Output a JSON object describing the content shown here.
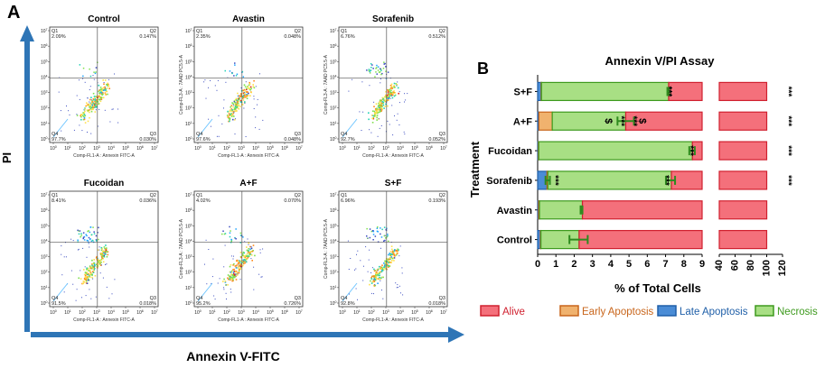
{
  "figure": {
    "panel_a_letter": "A",
    "panel_b_letter": "B",
    "x_arrow_label": "Annexin V-FITC",
    "y_arrow_label": "PI",
    "colors": {
      "arrow": "#2E75B6",
      "alive": "#F4707B",
      "alive_edge": "#D0202F",
      "early": "#F0B26E",
      "early_edge": "#C8651B",
      "late": "#4A8CD6",
      "late_edge": "#1F5FA8",
      "necrosis": "#A8DF84",
      "necrosis_edge": "#3E9A1E",
      "errbar": "#2E8B1E"
    }
  },
  "flow_panels": [
    {
      "title": "Control",
      "q1": "2.09%",
      "q2": "0.147%",
      "q3": "0.030%",
      "q4": "97.7%",
      "ylabel": ""
    },
    {
      "title": "Avastin",
      "q1": "2.35%",
      "q2": "0.048%",
      "q3": "0.048%",
      "q4": "97.6%",
      "ylabel": "Comp-FL3-A : 7AAD PC5.5-A"
    },
    {
      "title": "Sorafenib",
      "q1": "6.76%",
      "q2": "0.512%",
      "q3": "0.052%",
      "q4": "92.7%",
      "ylabel": "Comp-FL3-A : 7AAD PC5.5-A"
    },
    {
      "title": "Fucoidan",
      "q1": "8.41%",
      "q2": "0.036%",
      "q3": "0.018%",
      "q4": "91.5%",
      "ylabel": ""
    },
    {
      "title": "A+F",
      "q1": "4.02%",
      "q2": "0.070%",
      "q3": "0.726%",
      "q4": "95.2%",
      "ylabel": "Comp-FL3-A : 7AAD PC5.5-A"
    },
    {
      "title": "S+F",
      "q1": "6.96%",
      "q2": "0.193%",
      "q3": "0.018%",
      "q4": "92.8%",
      "ylabel": "Comp-FL3-A : 7AAD PC5.5-A"
    }
  ],
  "flow_axis": {
    "xlabel": "Comp-FL1-A : Annexin FITC-A",
    "x_ticks": [
      "10^0",
      "10^1",
      "10^2",
      "10^3",
      "10^4",
      "10^5",
      "10^6",
      "10^7"
    ],
    "y_ticks": [
      "10^0",
      "10^1",
      "10^2",
      "10^3",
      "10^4",
      "10^5",
      "10^6",
      "10^7"
    ]
  },
  "chart_data": {
    "type": "bar",
    "orientation": "horizontal",
    "stacked": true,
    "title": "Annexin V/PI Assay",
    "xlabel": "% of Total Cells",
    "ylabel": "Treatment",
    "categories": [
      "S+F",
      "A+F",
      "Fucoidan",
      "Sorafenib",
      "Avastin",
      "Control"
    ],
    "series": [
      {
        "name": "Late Apoptosis",
        "values": [
          0.19,
          0.07,
          0.04,
          0.51,
          0.05,
          0.15
        ]
      },
      {
        "name": "Early Apoptosis",
        "values": [
          0.02,
          0.73,
          0.02,
          0.05,
          0.05,
          0.03
        ]
      },
      {
        "name": "Necrosis",
        "values": [
          6.96,
          4.02,
          8.41,
          6.76,
          2.35,
          2.09
        ]
      },
      {
        "name": "Alive",
        "values": [
          92.8,
          95.2,
          91.5,
          92.7,
          97.6,
          97.7
        ]
      }
    ],
    "axis_break": true,
    "x_segment_1": {
      "range": [
        0,
        9
      ],
      "ticks": [
        "0",
        "1",
        "2",
        "3",
        "4",
        "5",
        "6",
        "7",
        "8",
        "9"
      ]
    },
    "x_segment_2": {
      "range": [
        40,
        120
      ],
      "ticks": [
        "40",
        "60",
        "80",
        "100",
        "120"
      ]
    },
    "legend": [
      "Alive",
      "Early Apoptosis",
      "Late Apoptosis",
      "Necrosis"
    ],
    "annotations": {
      "significance": "***",
      "dollar": "$",
      "labels": [
        {
          "category": "S+F",
          "at": 7.15,
          "text": "***",
          "rot": true
        },
        {
          "category": "S+F",
          "at": "right",
          "text": "***"
        },
        {
          "category": "A+F",
          "at": 3.85,
          "text": "$"
        },
        {
          "category": "A+F",
          "at": 4.55,
          "text": "***"
        },
        {
          "category": "A+F",
          "at": 5.25,
          "text": "***"
        },
        {
          "category": "A+F",
          "at": 5.7,
          "text": "$"
        },
        {
          "category": "A+F",
          "at": "right",
          "text": "***"
        },
        {
          "category": "Fucoidan",
          "at": 8.35,
          "text": "***"
        },
        {
          "category": "Fucoidan",
          "at": "right",
          "text": "***"
        },
        {
          "category": "Sorafenib",
          "at": 0.95,
          "text": "***"
        },
        {
          "category": "Sorafenib",
          "at": 7.0,
          "text": "***"
        },
        {
          "category": "Sorafenib",
          "at": "right",
          "text": "***"
        }
      ],
      "errors": [
        {
          "category": "S+F",
          "at": 7.15,
          "err": 0.05
        },
        {
          "category": "A+F",
          "at": 4.82,
          "err": 0.45
        },
        {
          "category": "Fucoidan",
          "at": 8.45,
          "err": 0.15
        },
        {
          "category": "Sorafenib",
          "at": 7.27,
          "err": 0.25
        },
        {
          "category": "Sorafenib",
          "at": 0.55,
          "err": 0.12
        },
        {
          "category": "Avastin",
          "at": 2.4,
          "err": 0.05
        },
        {
          "category": "Control",
          "at": 2.24,
          "err": 0.5
        }
      ]
    }
  }
}
